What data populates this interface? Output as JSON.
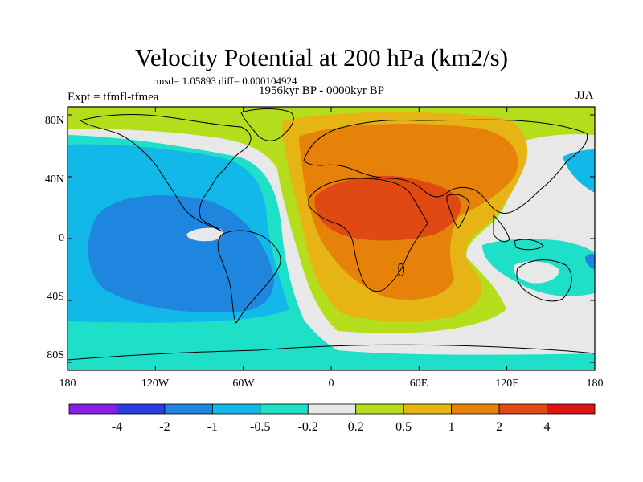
{
  "title": "Velocity Potential at 200 hPa (km2/s)",
  "stats": "rmsd= 1.05893 diff= 0.000104924",
  "left_label": "Expt = tfmfl-tfmea",
  "center_label": "1956kyr BP - 0000kyr BP",
  "right_label": "JJA",
  "lat_ticks": [
    "80N",
    "40N",
    "0",
    "40S",
    "80S"
  ],
  "lon_ticks": [
    "180",
    "120W",
    "60W",
    "0",
    "60E",
    "120E",
    "180"
  ],
  "colorbar": {
    "labels": [
      "-4",
      "-2",
      "-1",
      "-0.5",
      "-0.2",
      "0.2",
      "0.5",
      "1",
      "2",
      "4"
    ],
    "colors": [
      "#8a1ee6",
      "#2a3de0",
      "#1f86e0",
      "#12b9e8",
      "#1ee0c8",
      "#e8e8e8",
      "#b4de1c",
      "#e6b414",
      "#e6820a",
      "#e04a12",
      "#e01414"
    ]
  },
  "map_colors": {
    "n2": "#1f86e0",
    "n1": "#12b9e8",
    "n05": "#1ee0c8",
    "zero": "#e8e8e8",
    "p02": "#b4de1c",
    "p05": "#e6b414",
    "p1": "#e6820a",
    "p2": "#e04a12"
  }
}
